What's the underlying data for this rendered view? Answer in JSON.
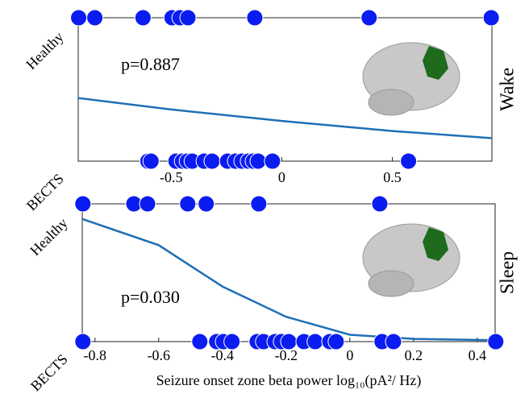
{
  "chart_data": [
    {
      "type": "scatter",
      "panel_label": "Wake",
      "annotation": "p=0.887",
      "xlim": [
        -0.92,
        0.95
      ],
      "xticks": [
        -0.5,
        0,
        0.5
      ],
      "ylim": [
        0,
        1
      ],
      "yticks": [
        {
          "value": 0,
          "label": "BECTS"
        },
        {
          "value": 1,
          "label": "Healthy"
        }
      ],
      "series": [
        {
          "color": "#0b1cf0",
          "x": [
            -0.918,
            -0.845,
            -0.627,
            -0.496,
            -0.46,
            -0.424,
            -0.122,
            0.395,
            0.947
          ],
          "values": [
            1,
            1,
            1,
            1,
            1,
            1,
            1,
            1,
            1
          ]
        },
        {
          "color": "#0b1cf0",
          "x": [
            -0.605,
            -0.591,
            -0.478,
            -0.449,
            -0.427,
            -0.405,
            -0.351,
            -0.315,
            -0.245,
            -0.209,
            -0.18,
            -0.151,
            -0.129,
            -0.107,
            -0.042,
            0.573
          ],
          "values": [
            0,
            0,
            0,
            0,
            0,
            0,
            0,
            0,
            0,
            0,
            0,
            0,
            0,
            0,
            0,
            0
          ]
        }
      ],
      "curve": {
        "color": "#1f6fb5",
        "x": [
          -0.92,
          -0.5,
          0,
          0.5,
          0.95
        ],
        "values": [
          0.44,
          0.36,
          0.28,
          0.21,
          0.16
        ]
      }
    },
    {
      "type": "scatter",
      "panel_label": "Sleep",
      "annotation": "p=0.030",
      "xlabel": "Seizure onset zone beta power log₁₀(pA²/ Hz)",
      "xlim": [
        -0.84,
        0.456
      ],
      "xticks": [
        -0.8,
        -0.6,
        -0.4,
        -0.2,
        0,
        0.2,
        0.4
      ],
      "ylim": [
        0,
        1
      ],
      "yticks": [
        {
          "value": 0,
          "label": "BECTS"
        },
        {
          "value": 1,
          "label": "Healthy"
        }
      ],
      "series": [
        {
          "color": "#0b1cf0",
          "x": [
            -0.838,
            -0.678,
            -0.635,
            -0.509,
            -0.451,
            -0.286,
            0.094
          ],
          "values": [
            1,
            1,
            1,
            1,
            1,
            1,
            1
          ]
        },
        {
          "color": "#0b1cf0",
          "x": [
            -0.838,
            -0.471,
            -0.418,
            -0.397,
            -0.37,
            -0.291,
            -0.271,
            -0.235,
            -0.215,
            -0.192,
            -0.144,
            -0.109,
            -0.063,
            -0.043,
            0.101,
            0.137,
            0.458
          ],
          "values": [
            0,
            0,
            0,
            0,
            0,
            0,
            0,
            0,
            0,
            0,
            0,
            0,
            0,
            0,
            0,
            0,
            0
          ]
        }
      ],
      "curve": {
        "color": "#1f6fb5",
        "x": [
          -0.84,
          -0.6,
          -0.4,
          -0.2,
          0,
          0.2,
          0.456
        ],
        "values": [
          0.89,
          0.7,
          0.4,
          0.18,
          0.05,
          0.02,
          0.01
        ]
      }
    }
  ]
}
